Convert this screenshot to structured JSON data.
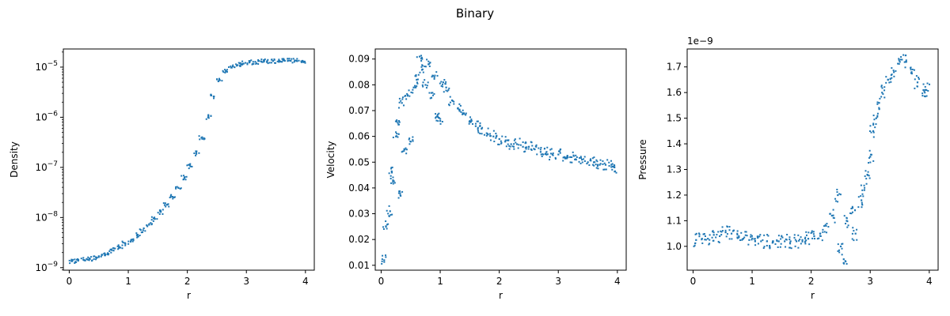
{
  "figure": {
    "title": "Binary"
  },
  "chart_data": [
    {
      "type": "scatter",
      "xlabel": "r",
      "ylabel": "Density",
      "yscale": "log",
      "xlim": [
        -0.1,
        4.15
      ],
      "ylim": [
        8.9e-10,
        2.3e-05
      ],
      "xticks": [
        0,
        1,
        2,
        3,
        4
      ],
      "yticks": [
        {
          "value": 1e-09,
          "base": "10",
          "exp": "−9"
        },
        {
          "value": 1e-08,
          "base": "10",
          "exp": "−8"
        },
        {
          "value": 1e-07,
          "base": "10",
          "exp": "−7"
        },
        {
          "value": 1e-06,
          "base": "10",
          "exp": "−6"
        },
        {
          "value": 1e-05,
          "base": "10",
          "exp": "−5"
        }
      ],
      "grid": false,
      "color": "#1f77b4",
      "points": [
        [
          0.05,
          1.35e-09
        ],
        [
          0.15,
          1.38e-09
        ],
        [
          0.25,
          1.42e-09
        ],
        [
          0.35,
          1.5e-09
        ],
        [
          0.45,
          1.62e-09
        ],
        [
          0.55,
          1.78e-09
        ],
        [
          0.65,
          1.95e-09
        ],
        [
          0.75,
          2.2e-09
        ],
        [
          0.85,
          2.55e-09
        ],
        [
          0.95,
          3e-09
        ],
        [
          1.05,
          3.6e-09
        ],
        [
          1.15,
          4.4e-09
        ],
        [
          1.25,
          5.6e-09
        ],
        [
          1.35,
          7.2e-09
        ],
        [
          1.45,
          9.4e-09
        ],
        [
          1.55,
          1.3e-08
        ],
        [
          1.65,
          1.8e-08
        ],
        [
          1.75,
          2.6e-08
        ],
        [
          1.85,
          3.9e-08
        ],
        [
          1.95,
          6.2e-08
        ],
        [
          2.05,
          1.05e-07
        ],
        [
          2.15,
          1.9e-07
        ],
        [
          2.25,
          4e-07
        ],
        [
          2.35,
          1e-06
        ],
        [
          2.45,
          2.6e-06
        ],
        [
          2.55,
          5.5e-06
        ],
        [
          2.65,
          8.3e-06
        ],
        [
          2.75,
          9.8e-06
        ],
        [
          2.85,
          1.1e-05
        ],
        [
          2.95,
          1.18e-05
        ],
        [
          3.05,
          1.24e-05
        ],
        [
          3.15,
          1.28e-05
        ],
        [
          3.25,
          1.3e-05
        ],
        [
          3.35,
          1.32e-05
        ],
        [
          3.45,
          1.33e-05
        ],
        [
          3.55,
          1.34e-05
        ],
        [
          3.65,
          1.34e-05
        ],
        [
          3.75,
          1.34e-05
        ],
        [
          3.85,
          1.34e-05
        ],
        [
          3.95,
          1.34e-05
        ]
      ]
    },
    {
      "type": "scatter",
      "xlabel": "r",
      "ylabel": "Velocity",
      "yscale": "linear",
      "xlim": [
        -0.1,
        4.15
      ],
      "ylim": [
        0.0081,
        0.0939
      ],
      "xticks": [
        0,
        1,
        2,
        3,
        4
      ],
      "yticks": [
        0.01,
        0.02,
        0.03,
        0.04,
        0.05,
        0.06,
        0.07,
        0.08,
        0.09
      ],
      "grid": false,
      "color": "#1f77b4",
      "points": [
        [
          0.05,
          0.012
        ],
        [
          0.08,
          0.025
        ],
        [
          0.15,
          0.031
        ],
        [
          0.18,
          0.046
        ],
        [
          0.2,
          0.043
        ],
        [
          0.25,
          0.06
        ],
        [
          0.3,
          0.066
        ],
        [
          0.32,
          0.038
        ],
        [
          0.35,
          0.073
        ],
        [
          0.4,
          0.055
        ],
        [
          0.45,
          0.076
        ],
        [
          0.5,
          0.058
        ],
        [
          0.55,
          0.079
        ],
        [
          0.6,
          0.082
        ],
        [
          0.65,
          0.091
        ],
        [
          0.7,
          0.086
        ],
        [
          0.75,
          0.08
        ],
        [
          0.8,
          0.088
        ],
        [
          0.85,
          0.075
        ],
        [
          0.9,
          0.083
        ],
        [
          0.95,
          0.068
        ],
        [
          1.0,
          0.066
        ],
        [
          1.05,
          0.081
        ],
        [
          1.1,
          0.079
        ],
        [
          1.2,
          0.074
        ],
        [
          1.3,
          0.071
        ],
        [
          1.4,
          0.069
        ],
        [
          1.5,
          0.066
        ],
        [
          1.6,
          0.064
        ],
        [
          1.7,
          0.063
        ],
        [
          1.8,
          0.061
        ],
        [
          1.9,
          0.06
        ],
        [
          2.0,
          0.059
        ],
        [
          2.1,
          0.058
        ],
        [
          2.2,
          0.057
        ],
        [
          2.3,
          0.057
        ],
        [
          2.4,
          0.056
        ],
        [
          2.5,
          0.056
        ],
        [
          2.6,
          0.055
        ],
        [
          2.7,
          0.054
        ],
        [
          2.8,
          0.054
        ],
        [
          2.9,
          0.053
        ],
        [
          3.0,
          0.053
        ],
        [
          3.1,
          0.052
        ],
        [
          3.2,
          0.052
        ],
        [
          3.3,
          0.051
        ],
        [
          3.4,
          0.051
        ],
        [
          3.5,
          0.05
        ],
        [
          3.6,
          0.05
        ],
        [
          3.7,
          0.049
        ],
        [
          3.8,
          0.049
        ],
        [
          3.9,
          0.049
        ],
        [
          3.95,
          0.048
        ]
      ]
    },
    {
      "type": "scatter",
      "xlabel": "r",
      "ylabel": "Pressure",
      "yscale": "linear",
      "offset_label": "1e−9",
      "xlim": [
        -0.1,
        4.15
      ],
      "ylim": [
        0.907,
        1.77
      ],
      "xticks": [
        0,
        1,
        2,
        3,
        4
      ],
      "yticks": [
        1.0,
        1.1,
        1.2,
        1.3,
        1.4,
        1.5,
        1.6,
        1.7
      ],
      "grid": false,
      "color": "#1f77b4",
      "points": [
        [
          0.05,
          1.025
        ],
        [
          0.15,
          1.03
        ],
        [
          0.25,
          1.03
        ],
        [
          0.35,
          1.045
        ],
        [
          0.45,
          1.04
        ],
        [
          0.55,
          1.055
        ],
        [
          0.65,
          1.05
        ],
        [
          0.75,
          1.035
        ],
        [
          0.85,
          1.03
        ],
        [
          0.95,
          1.025
        ],
        [
          1.05,
          1.02
        ],
        [
          1.15,
          1.02
        ],
        [
          1.25,
          1.02
        ],
        [
          1.35,
          1.02
        ],
        [
          1.45,
          1.02
        ],
        [
          1.55,
          1.02
        ],
        [
          1.65,
          1.02
        ],
        [
          1.75,
          1.02
        ],
        [
          1.85,
          1.025
        ],
        [
          1.95,
          1.03
        ],
        [
          2.05,
          1.04
        ],
        [
          2.15,
          1.05
        ],
        [
          2.25,
          1.08
        ],
        [
          2.35,
          1.12
        ],
        [
          2.45,
          1.2
        ],
        [
          2.5,
          1.0
        ],
        [
          2.55,
          0.95
        ],
        [
          2.6,
          1.1
        ],
        [
          2.7,
          1.15
        ],
        [
          2.75,
          1.05
        ],
        [
          2.85,
          1.18
        ],
        [
          2.9,
          1.22
        ],
        [
          2.95,
          1.28
        ],
        [
          3.0,
          1.35
        ],
        [
          3.05,
          1.45
        ],
        [
          3.1,
          1.5
        ],
        [
          3.15,
          1.56
        ],
        [
          3.2,
          1.6
        ],
        [
          3.3,
          1.65
        ],
        [
          3.4,
          1.68
        ],
        [
          3.5,
          1.72
        ],
        [
          3.6,
          1.72
        ],
        [
          3.7,
          1.68
        ],
        [
          3.8,
          1.64
        ],
        [
          3.9,
          1.61
        ],
        [
          3.95,
          1.61
        ]
      ]
    }
  ]
}
